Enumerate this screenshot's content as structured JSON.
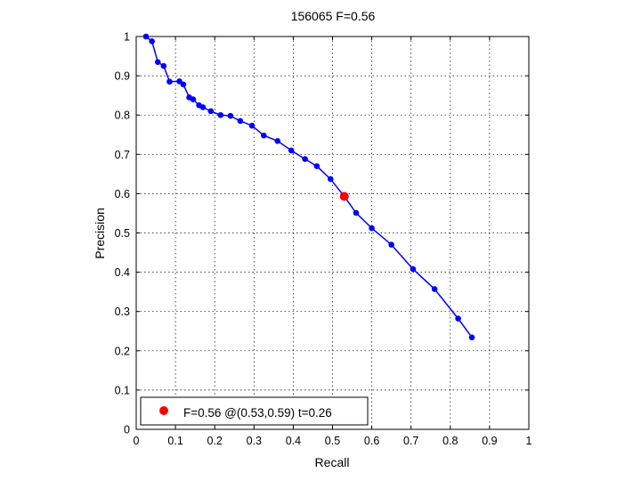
{
  "chart_data": {
    "type": "line",
    "title": "156065 F=0.56",
    "xlabel": "Recall",
    "ylabel": "Precision",
    "xlim": [
      0,
      1
    ],
    "ylim": [
      0,
      1
    ],
    "grid": true,
    "x_ticks": [
      "0",
      "0.1",
      "0.2",
      "0.3",
      "0.4",
      "0.5",
      "0.6",
      "0.7",
      "0.8",
      "0.9",
      "1"
    ],
    "y_ticks": [
      "0",
      "0.1",
      "0.2",
      "0.3",
      "0.4",
      "0.5",
      "0.6",
      "0.7",
      "0.8",
      "0.9",
      "1"
    ],
    "series": [
      {
        "color": "#0000ff",
        "marker": "dot",
        "x": [
          0.025,
          0.04,
          0.055,
          0.07,
          0.085,
          0.11,
          0.12,
          0.135,
          0.145,
          0.16,
          0.17,
          0.19,
          0.215,
          0.24,
          0.265,
          0.295,
          0.325,
          0.36,
          0.395,
          0.43,
          0.46,
          0.495,
          0.53,
          0.56,
          0.6,
          0.65,
          0.705,
          0.76,
          0.82,
          0.855
        ],
        "y": [
          1.0,
          0.988,
          0.935,
          0.925,
          0.885,
          0.886,
          0.878,
          0.845,
          0.84,
          0.825,
          0.82,
          0.81,
          0.8,
          0.798,
          0.785,
          0.773,
          0.748,
          0.734,
          0.71,
          0.688,
          0.67,
          0.637,
          0.593,
          0.551,
          0.512,
          0.47,
          0.408,
          0.357,
          0.282,
          0.234
        ]
      }
    ],
    "best_point": {
      "x": 0.53,
      "y": 0.593,
      "color": "#ff0000"
    },
    "legend": {
      "placement": "bottom-left",
      "label": "F=0.56 @(0.53,0.59) t=0.26"
    }
  }
}
